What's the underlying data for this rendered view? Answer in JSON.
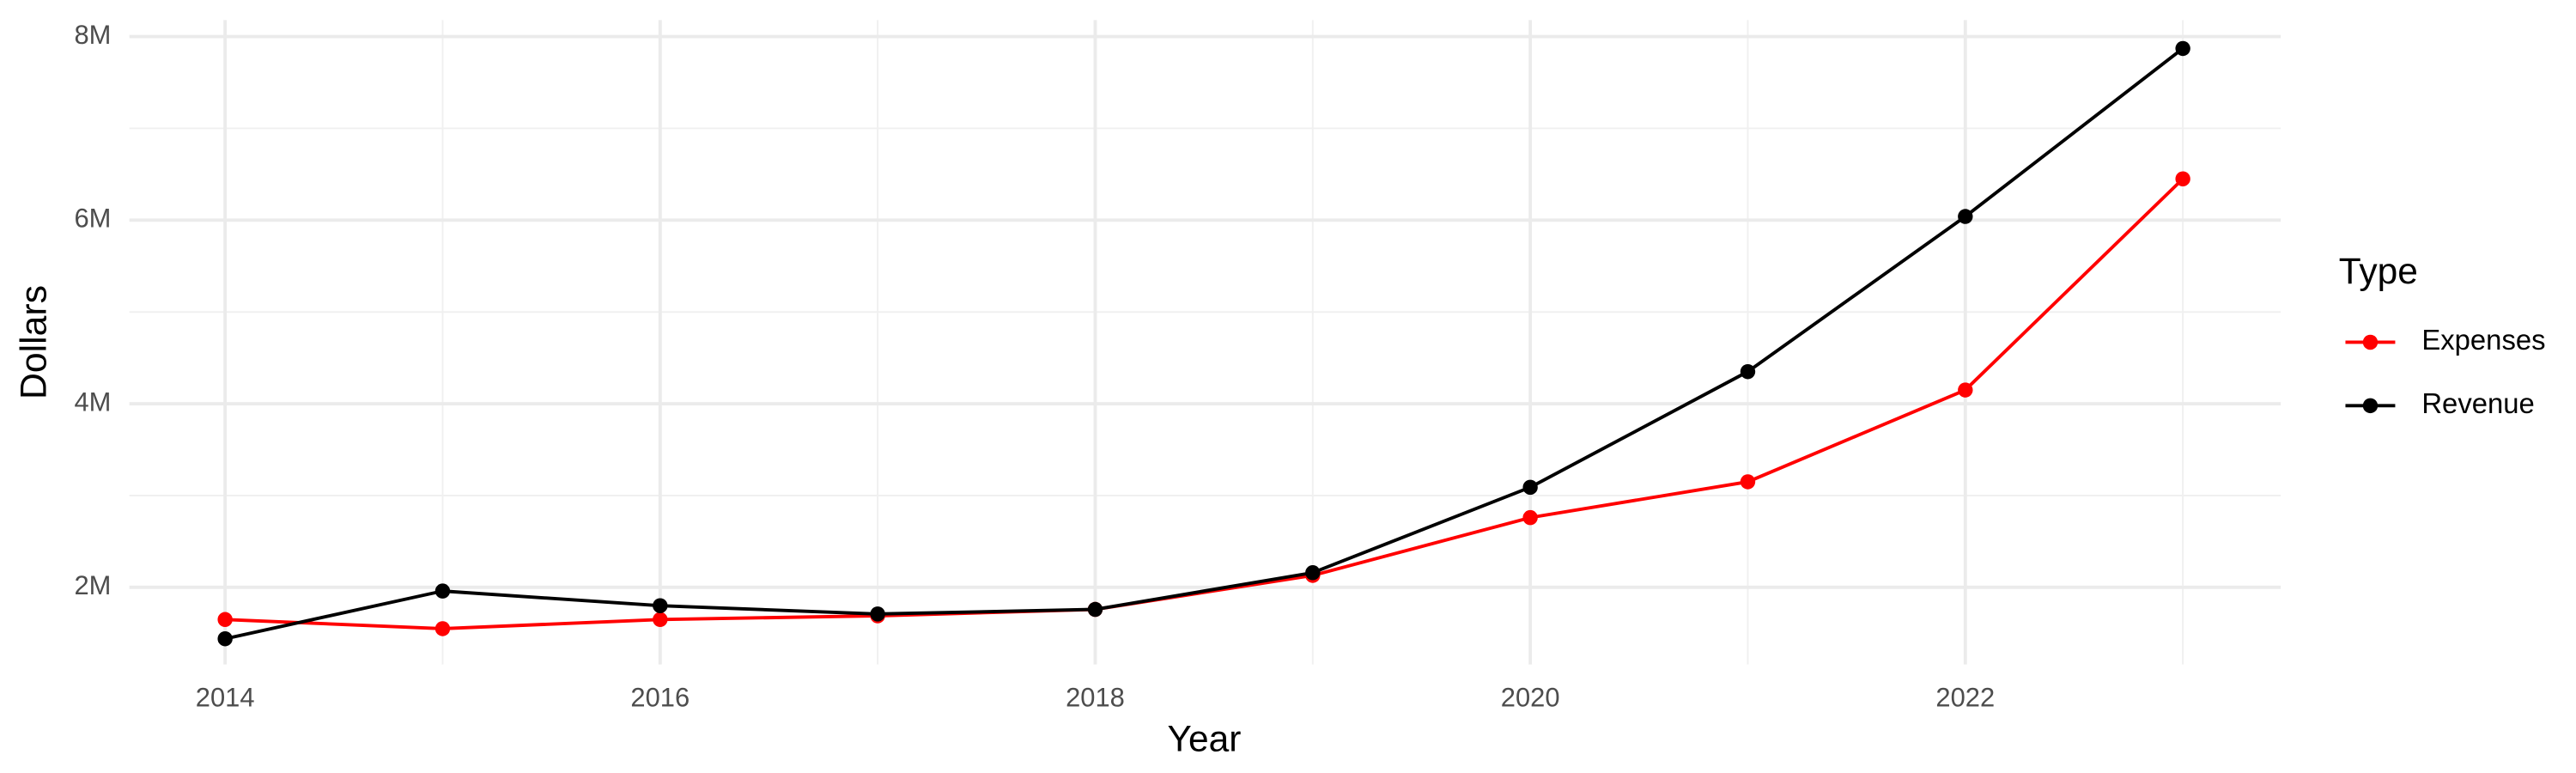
{
  "chart_data": {
    "type": "line",
    "x_label": "Year",
    "y_label": "Dollars",
    "x": [
      2014,
      2015,
      2016,
      2017,
      2018,
      2019,
      2020,
      2021,
      2022,
      2023
    ],
    "series": [
      {
        "name": "Expenses",
        "color": "#ff0000",
        "values": [
          1650000,
          1550000,
          1650000,
          1690000,
          1760000,
          2130000,
          2760000,
          3150000,
          4150000,
          6450000
        ]
      },
      {
        "name": "Revenue",
        "color": "#000000",
        "values": [
          1440000,
          1960000,
          1800000,
          1710000,
          1760000,
          2160000,
          3090000,
          4350000,
          6040000,
          7870000
        ]
      }
    ],
    "xlim": [
      2013.56,
      2023.45
    ],
    "xticks": [
      2014,
      2016,
      2018,
      2020,
      2022
    ],
    "ylim": [
      1160000,
      8180000
    ],
    "yticks": [
      {
        "value": 2000000,
        "label": "2M"
      },
      {
        "value": 4000000,
        "label": "4M"
      },
      {
        "value": 6000000,
        "label": "6M"
      },
      {
        "value": 8000000,
        "label": "8M"
      }
    ],
    "grid": true,
    "legend_title": "Type",
    "legend_position": "right"
  }
}
